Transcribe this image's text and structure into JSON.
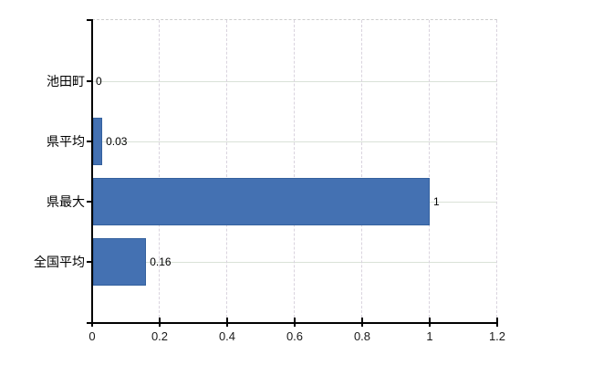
{
  "chart_data": {
    "type": "bar",
    "orientation": "horizontal",
    "title": "",
    "categories": [
      "池田町",
      "県平均",
      "県最大",
      "全国平均"
    ],
    "values": [
      0,
      0.03,
      1,
      0.16
    ],
    "value_labels": [
      "0",
      "0.03",
      "1",
      "0.16"
    ],
    "x_axis": {
      "min": 0,
      "max": 1.2,
      "tick_values": [
        0,
        0.2,
        0.4,
        0.6,
        0.8,
        1,
        1.2
      ],
      "tick_labels": [
        "0",
        "0.2",
        "0.4",
        "0.6",
        "0.8",
        "1",
        "1.2"
      ]
    },
    "y_axis": {
      "tick_labels": [
        "池田町",
        "県平均",
        "県最大",
        "全国平均"
      ]
    },
    "legend": false,
    "grid": true,
    "colors": {
      "background": "#ffffff",
      "bar_fill": "#4471b2",
      "bar_border": "#34619e",
      "axis": "#000000",
      "grid_horizontal": "#dae2d8",
      "grid_vertical": "#d9d3de",
      "plot_border_dashed": "#cdcdcd",
      "label_text": "#000000"
    }
  }
}
